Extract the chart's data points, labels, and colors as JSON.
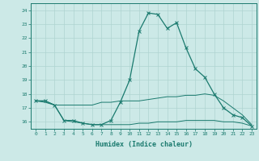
{
  "x": [
    0,
    1,
    2,
    3,
    4,
    5,
    6,
    7,
    8,
    9,
    10,
    11,
    12,
    13,
    14,
    15,
    16,
    17,
    18,
    19,
    20,
    21,
    22,
    23
  ],
  "line_main": [
    17.5,
    17.5,
    17.2,
    16.1,
    16.1,
    15.9,
    15.8,
    15.8,
    16.1,
    17.4,
    19.0,
    22.5,
    23.8,
    23.7,
    22.7,
    23.1,
    21.3,
    19.8,
    19.2,
    18.0,
    17.0,
    16.5,
    16.3,
    15.7
  ],
  "line_max": [
    17.5,
    17.5,
    17.2,
    17.2,
    17.2,
    17.2,
    17.2,
    17.4,
    17.4,
    17.5,
    17.5,
    17.5,
    17.6,
    17.7,
    17.8,
    17.8,
    17.9,
    17.9,
    18.0,
    17.9,
    17.5,
    17.0,
    16.5,
    15.8
  ],
  "line_min": [
    17.5,
    17.4,
    17.2,
    16.1,
    16.0,
    15.9,
    15.8,
    15.8,
    15.8,
    15.8,
    15.8,
    15.9,
    15.9,
    16.0,
    16.0,
    16.0,
    16.1,
    16.1,
    16.1,
    16.1,
    16.0,
    16.0,
    15.9,
    15.7
  ],
  "ylim": [
    15.5,
    24.5
  ],
  "yticks": [
    16,
    17,
    18,
    19,
    20,
    21,
    22,
    23,
    24
  ],
  "xticks": [
    0,
    1,
    2,
    3,
    4,
    5,
    6,
    7,
    8,
    9,
    10,
    11,
    12,
    13,
    14,
    15,
    16,
    17,
    18,
    19,
    20,
    21,
    22,
    23
  ],
  "xlabel": "Humidex (Indice chaleur)",
  "line_color": "#1a7a6e",
  "bg_color": "#cce9e7",
  "grid_color": "#afd4d1"
}
